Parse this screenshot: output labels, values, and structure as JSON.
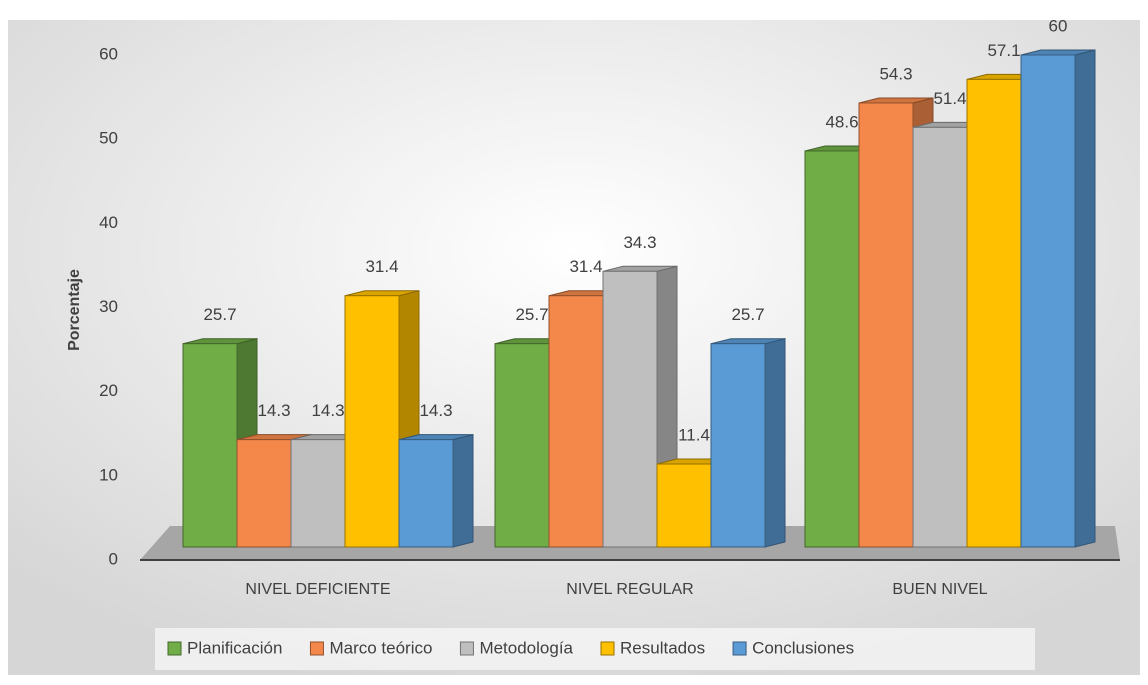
{
  "chart_data": {
    "type": "bar3d",
    "y_label": "Porcentaje",
    "categories": [
      "NIVEL DEFICIENTE",
      "NIVEL REGULAR",
      "BUEN NIVEL"
    ],
    "series": [
      {
        "name": "Planificación",
        "color": "#70ad47",
        "values": [
          25.7,
          25.7,
          48.6
        ]
      },
      {
        "name": "Marco teórico",
        "color": "#f4874a",
        "values": [
          14.3,
          31.4,
          54.3
        ]
      },
      {
        "name": "Metodología",
        "color": "#bfbfbf",
        "values": [
          14.3,
          34.3,
          51.4
        ]
      },
      {
        "name": "Resultados",
        "color": "#ffc000",
        "values": [
          31.4,
          11.4,
          57.1
        ]
      },
      {
        "name": "Conclusiones",
        "color": "#5b9bd5",
        "values": [
          14.3,
          25.7,
          60
        ]
      }
    ],
    "ylim": [
      0,
      60
    ],
    "yticks": [
      0,
      10,
      20,
      30,
      40,
      50,
      60
    ],
    "legend": "bottom"
  }
}
